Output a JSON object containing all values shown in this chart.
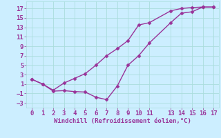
{
  "xlabel": "Windchill (Refroidissement éolien,°C)",
  "line1_x": [
    0,
    1,
    2,
    3,
    4,
    5,
    6,
    7,
    8,
    9,
    10,
    11,
    13,
    14,
    15,
    16,
    17
  ],
  "line1_y": [
    2,
    1,
    -0.3,
    1.2,
    2.2,
    3.2,
    5.0,
    7.0,
    8.5,
    10.2,
    13.5,
    14.0,
    16.5,
    17.0,
    17.2,
    17.3,
    17.3
  ],
  "line2_x": [
    0,
    1,
    2,
    3,
    4,
    5,
    6,
    7,
    8,
    9,
    10,
    11,
    13,
    14,
    15,
    16,
    17
  ],
  "line2_y": [
    2,
    1.0,
    -0.5,
    -0.4,
    -0.6,
    -0.7,
    -1.8,
    -2.3,
    0.6,
    5.0,
    7.0,
    9.7,
    14.0,
    16.0,
    16.3,
    17.3,
    17.3
  ],
  "line_color": "#993399",
  "marker": "D",
  "marker_size": 2.5,
  "background_color": "#cceeff",
  "grid_color": "#aadddd",
  "xlim": [
    -0.5,
    17.5
  ],
  "ylim": [
    -4,
    18.5
  ],
  "xticks": [
    0,
    1,
    2,
    3,
    4,
    5,
    6,
    7,
    8,
    9,
    10,
    11,
    13,
    14,
    15,
    16,
    17
  ],
  "yticks": [
    -3,
    -1,
    1,
    3,
    5,
    7,
    9,
    11,
    13,
    15,
    17
  ],
  "tick_fontsize": 6.5,
  "xlabel_fontsize": 6.5,
  "line_width": 1.0
}
